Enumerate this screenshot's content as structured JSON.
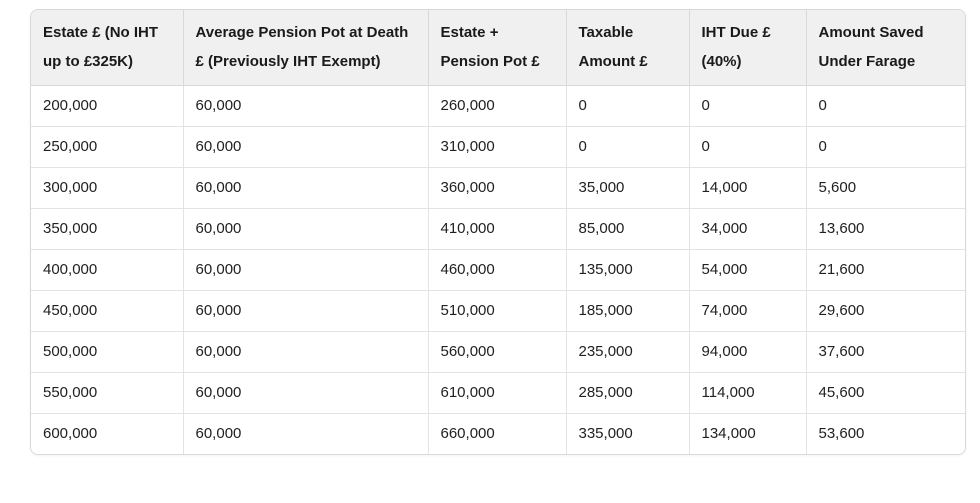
{
  "page": {
    "background_color": "#ffffff"
  },
  "table": {
    "headers": [
      "Estate £ (No IHT up to £325K)",
      "Average Pension Pot at Death £ (Previously IHT Exempt)",
      "Estate + Pension Pot £",
      "Taxable Amount £",
      "IHT Due £ (40%)",
      "Amount Saved Under Farage"
    ],
    "rows": [
      [
        "200,000",
        "60,000",
        "260,000",
        "0",
        "0",
        "0"
      ],
      [
        "250,000",
        "60,000",
        "310,000",
        "0",
        "0",
        "0"
      ],
      [
        "300,000",
        "60,000",
        "360,000",
        "35,000",
        "14,000",
        "5,600"
      ],
      [
        "350,000",
        "60,000",
        "410,000",
        "85,000",
        "34,000",
        "13,600"
      ],
      [
        "400,000",
        "60,000",
        "460,000",
        "135,000",
        "54,000",
        "21,600"
      ],
      [
        "450,000",
        "60,000",
        "510,000",
        "185,000",
        "74,000",
        "29,600"
      ],
      [
        "500,000",
        "60,000",
        "560,000",
        "235,000",
        "94,000",
        "37,600"
      ],
      [
        "550,000",
        "60,000",
        "610,000",
        "285,000",
        "114,000",
        "45,600"
      ],
      [
        "600,000",
        "60,000",
        "660,000",
        "335,000",
        "134,000",
        "53,600"
      ]
    ],
    "colors": {
      "header_background": "#f0f0f0",
      "outer_border": "#d9d9d9",
      "grid_line": "#e3e3e3",
      "text": "#212121"
    }
  },
  "chart_data": {
    "type": "table",
    "title": "",
    "columns": [
      "Estate £ (No IHT up to £325K)",
      "Average Pension Pot at Death £ (Previously IHT Exempt)",
      "Estate + Pension Pot £",
      "Taxable Amount £",
      "IHT Due £ (40%)",
      "Amount Saved Under Farage"
    ],
    "rows": [
      [
        200000,
        60000,
        260000,
        0,
        0,
        0
      ],
      [
        250000,
        60000,
        310000,
        0,
        0,
        0
      ],
      [
        300000,
        60000,
        360000,
        35000,
        14000,
        5600
      ],
      [
        350000,
        60000,
        410000,
        85000,
        34000,
        13600
      ],
      [
        400000,
        60000,
        460000,
        135000,
        54000,
        21600
      ],
      [
        450000,
        60000,
        510000,
        185000,
        74000,
        29600
      ],
      [
        500000,
        60000,
        560000,
        235000,
        94000,
        37600
      ],
      [
        550000,
        60000,
        610000,
        285000,
        114000,
        45600
      ],
      [
        600000,
        60000,
        660000,
        335000,
        134000,
        53600
      ]
    ]
  }
}
